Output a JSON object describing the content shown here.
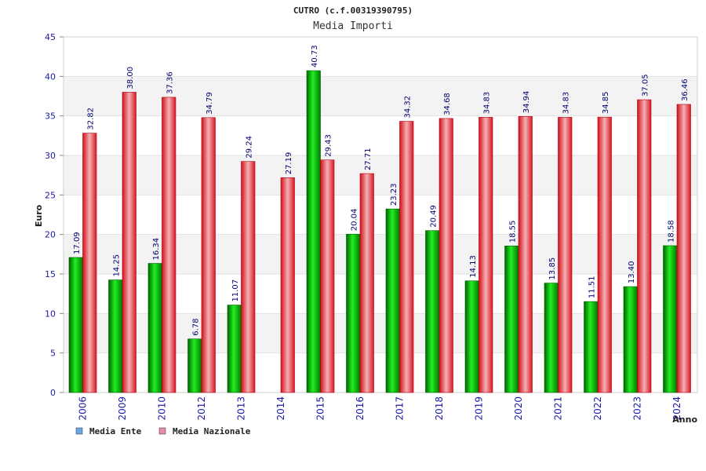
{
  "chart_data": {
    "type": "bar",
    "title": "CUTRO (c.f.00319390795)",
    "subtitle": "Media Importi",
    "ylabel": "Euro",
    "xlabel": "Anno",
    "ylim": [
      0,
      45
    ],
    "yticks": [
      0,
      5,
      10,
      15,
      20,
      25,
      30,
      35,
      40,
      45
    ],
    "grid": "horizontal bands",
    "legend_position": "bottom-left",
    "categories": [
      "2006",
      "2009",
      "2010",
      "2012",
      "2013",
      "2014",
      "2015",
      "2016",
      "2017",
      "2018",
      "2019",
      "2020",
      "2021",
      "2022",
      "2023",
      "2024"
    ],
    "series": [
      {
        "name": "Media Ente",
        "color": "#00b000",
        "legend_color": "#6aa6e8",
        "values": [
          17.09,
          14.25,
          16.34,
          6.78,
          11.07,
          null,
          40.73,
          20.04,
          23.23,
          20.49,
          14.13,
          18.55,
          13.85,
          11.51,
          13.4,
          18.58
        ],
        "labels": [
          "17.09",
          "14.25",
          "16.34",
          "6.78",
          "11.07",
          "",
          "40.73",
          "20.04",
          "23.23",
          "20.49",
          "14.13",
          "18.55",
          "13.85",
          "11.51",
          "13.40",
          "18.58"
        ]
      },
      {
        "name": "Media Nazionale",
        "color": "#e8202a",
        "legend_color": "#e58cb0",
        "values": [
          32.82,
          38.0,
          37.36,
          34.79,
          29.24,
          27.19,
          29.43,
          27.71,
          34.32,
          34.68,
          34.83,
          34.94,
          34.83,
          34.85,
          37.05,
          36.46
        ],
        "labels": [
          "32.82",
          "38.00",
          "37.36",
          "34.79",
          "29.24",
          "27.19",
          "29.43",
          "27.71",
          "34.32",
          "34.68",
          "34.83",
          "34.94",
          "34.83",
          "34.85",
          "37.05",
          "36.46"
        ]
      }
    ]
  }
}
